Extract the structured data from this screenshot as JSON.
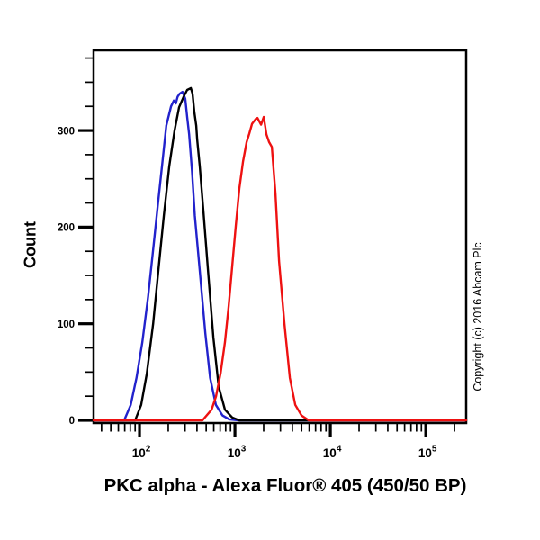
{
  "figure": {
    "background": "#ffffff",
    "title": "PKC alpha - Alexa Fluor® 405 (450/50 BP)",
    "copyright": "Copyright (c) 2016 Abcam Plc"
  },
  "chart_data": {
    "type": "line",
    "subtype": "flow-cytometry-histogram",
    "title": "PKC alpha - Alexa Fluor® 405 (450/50 BP)",
    "xlabel": "PKC alpha - Alexa Fluor® 405 (450/50 BP)",
    "ylabel": "Count",
    "x_scale": "log",
    "grid": false,
    "legend": "none",
    "xlim": [
      33,
      265000
    ],
    "ylim": [
      0,
      383
    ],
    "y_major_ticks": [
      0,
      100,
      200,
      300
    ],
    "y_minor_step": 25,
    "x_major_ticks": [
      100,
      1000,
      10000,
      100000
    ],
    "x_tick_labels": [
      {
        "base": "10",
        "exp": "2"
      },
      {
        "base": "10",
        "exp": "3"
      },
      {
        "base": "10",
        "exp": "4"
      },
      {
        "base": "10",
        "exp": "5"
      }
    ],
    "axis_color": "#000000",
    "series": [
      {
        "name": "blue",
        "color": "#2222cc",
        "points": [
          [
            33,
            0
          ],
          [
            69,
            0
          ],
          [
            81,
            16
          ],
          [
            93,
            44
          ],
          [
            107,
            81
          ],
          [
            123,
            128
          ],
          [
            138,
            174
          ],
          [
            155,
            221
          ],
          [
            174,
            268
          ],
          [
            191,
            305
          ],
          [
            214,
            325
          ],
          [
            229,
            331
          ],
          [
            240,
            328
          ],
          [
            251,
            335
          ],
          [
            263,
            338
          ],
          [
            282,
            340
          ],
          [
            302,
            333
          ],
          [
            316,
            314
          ],
          [
            331,
            296
          ],
          [
            355,
            258
          ],
          [
            380,
            212
          ],
          [
            427,
            156
          ],
          [
            490,
            90
          ],
          [
            550,
            44
          ],
          [
            631,
            16
          ],
          [
            741,
            5
          ],
          [
            871,
            1
          ],
          [
            1100,
            0
          ],
          [
            265000,
            0
          ]
        ]
      },
      {
        "name": "black",
        "color": "#000000",
        "points": [
          [
            33,
            0
          ],
          [
            90,
            0
          ],
          [
            104,
            16
          ],
          [
            119,
            48
          ],
          [
            139,
            100
          ],
          [
            158,
            156
          ],
          [
            180,
            212
          ],
          [
            205,
            263
          ],
          [
            233,
            300
          ],
          [
            260,
            324
          ],
          [
            290,
            335
          ],
          [
            316,
            342
          ],
          [
            345,
            344
          ],
          [
            360,
            338
          ],
          [
            376,
            319
          ],
          [
            393,
            305
          ],
          [
            402,
            291
          ],
          [
            428,
            263
          ],
          [
            468,
            216
          ],
          [
            521,
            156
          ],
          [
            594,
            86
          ],
          [
            676,
            35
          ],
          [
            787,
            11
          ],
          [
            937,
            3
          ],
          [
            1114,
            0
          ],
          [
            265000,
            0
          ]
        ]
      },
      {
        "name": "red",
        "color": "#ee1111",
        "points": [
          [
            33,
            0
          ],
          [
            457,
            0
          ],
          [
            569,
            11
          ],
          [
            634,
            25
          ],
          [
            708,
            49
          ],
          [
            787,
            81
          ],
          [
            859,
            118
          ],
          [
            937,
            160
          ],
          [
            1022,
            202
          ],
          [
            1114,
            240
          ],
          [
            1216,
            268
          ],
          [
            1327,
            288
          ],
          [
            1416,
            297
          ],
          [
            1510,
            307
          ],
          [
            1655,
            312
          ],
          [
            1722,
            313
          ],
          [
            1879,
            306
          ],
          [
            2005,
            314
          ],
          [
            2139,
            296
          ],
          [
            2280,
            288
          ],
          [
            2437,
            283
          ],
          [
            2658,
            235
          ],
          [
            2898,
            165
          ],
          [
            3303,
            100
          ],
          [
            3760,
            44
          ],
          [
            4286,
            16
          ],
          [
            4989,
            5
          ],
          [
            5941,
            0
          ],
          [
            265000,
            0
          ]
        ]
      }
    ]
  }
}
